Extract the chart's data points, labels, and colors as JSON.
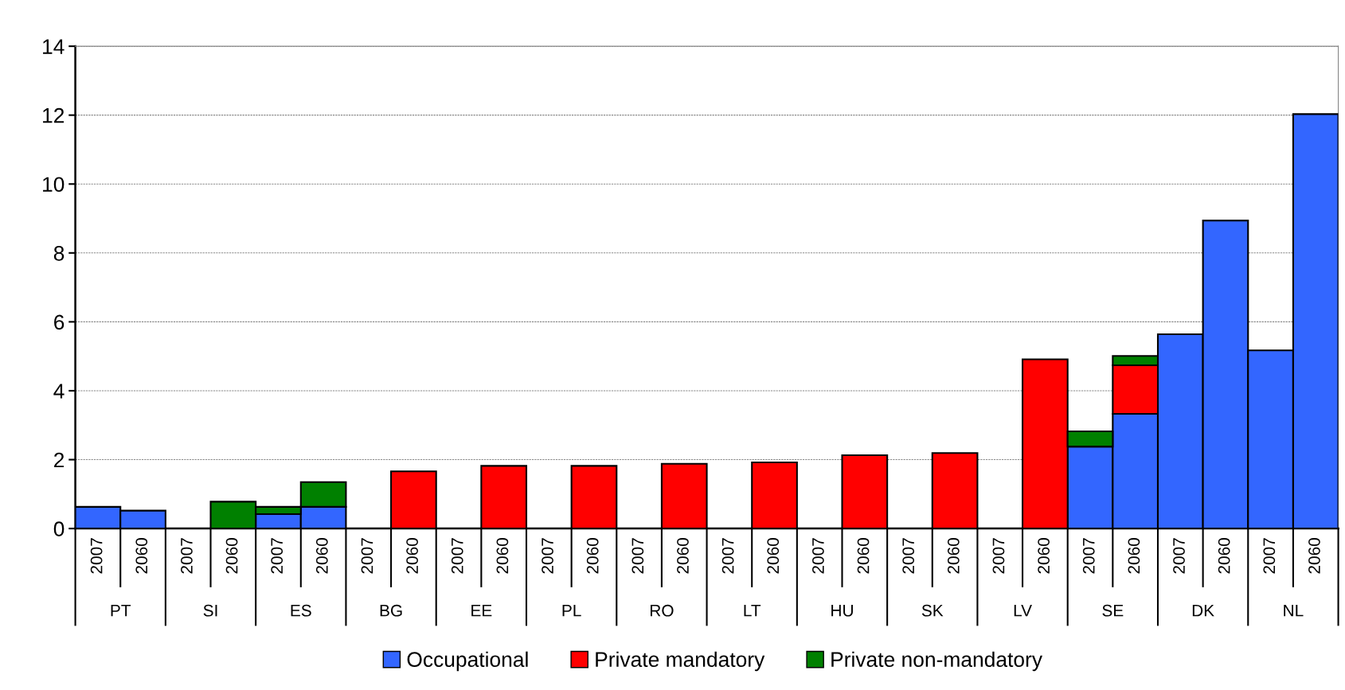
{
  "chart_data": {
    "type": "bar",
    "stacked": true,
    "categories": [
      "2007",
      "2060",
      "2007",
      "2060",
      "2007",
      "2060",
      "2007",
      "2060",
      "2007",
      "2060",
      "2007",
      "2060",
      "2007",
      "2060",
      "2007",
      "2060",
      "2007",
      "2060",
      "2007",
      "2060",
      "2007",
      "2060",
      "2007",
      "2060",
      "2007",
      "2060",
      "2007",
      "2060"
    ],
    "series": [
      {
        "name": "Occupational",
        "color": "#3366ff",
        "values": [
          0.63,
          0.52,
          0,
          0,
          0.42,
          0.63,
          0,
          0,
          0,
          0,
          0,
          0,
          0,
          0,
          0,
          0,
          0,
          0,
          0,
          0,
          0,
          0,
          2.38,
          3.33,
          5.64,
          8.94,
          5.17,
          12.03
        ]
      },
      {
        "name": "Private mandatory",
        "color": "#ff0000",
        "values": [
          0,
          0,
          0,
          0,
          0,
          0,
          0,
          1.66,
          0,
          1.82,
          0,
          1.82,
          0,
          1.88,
          0,
          1.92,
          0,
          2.13,
          0,
          2.19,
          0,
          4.91,
          0,
          1.41,
          0,
          0,
          0,
          0
        ]
      },
      {
        "name": "Private non-mandatory",
        "color": "#008000",
        "values": [
          0,
          0,
          0,
          0.78,
          0.21,
          0.72,
          0,
          0,
          0,
          0,
          0,
          0,
          0,
          0,
          0,
          0,
          0,
          0,
          0,
          0,
          0,
          0,
          0.44,
          0.27,
          0,
          0,
          0,
          0
        ]
      }
    ],
    "annotations": [
      "PT",
      "SI",
      "ES",
      "BG",
      "EE",
      "PL",
      "RO",
      "LT",
      "HU",
      "SK",
      "LV",
      "SE",
      "DK",
      "NL"
    ],
    "ylim": [
      0,
      14
    ],
    "yticks": [
      0,
      2,
      4,
      6,
      8,
      10,
      12,
      14
    ],
    "grid": "y",
    "legend": "bottom"
  }
}
